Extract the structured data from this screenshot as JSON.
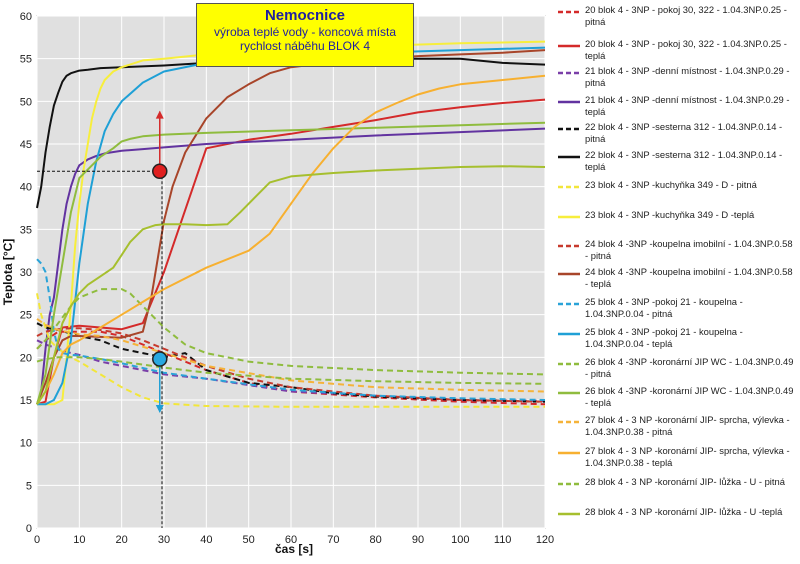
{
  "title_box": {
    "title": "Nemocnice",
    "line1": "výroba teplé vody - koncová místa",
    "line2": "rychlost náběhu BLOK  4"
  },
  "chart_data": {
    "type": "line",
    "xlabel": "čas [s]",
    "ylabel": "Teplota [°C]",
    "xlim": [
      0,
      120
    ],
    "ylim": [
      0,
      60
    ],
    "xticks": [
      0,
      10,
      20,
      30,
      40,
      50,
      60,
      70,
      80,
      90,
      100,
      110,
      120
    ],
    "yticks": [
      0,
      5,
      10,
      15,
      20,
      25,
      30,
      35,
      40,
      45,
      50,
      55,
      60
    ],
    "grid": true,
    "legend_position": "right",
    "annotations": {
      "reference_x": 30,
      "red_marker": {
        "x": 29,
        "y": 41.8
      },
      "blue_marker": {
        "x": 29,
        "y": 19.8
      }
    },
    "series": [
      {
        "name": "20 blok 4 - 3NP - pokoj 30, 322 - 1.04.3NP.0.25 - pitná",
        "color": "#d42a2a",
        "dashed": true,
        "x": [
          0,
          2,
          5,
          8,
          10,
          15,
          20,
          25,
          30,
          40,
          50,
          60,
          80,
          100,
          120
        ],
        "y": [
          21,
          22,
          23,
          23,
          23,
          23,
          22.5,
          21.5,
          20.5,
          18.5,
          17,
          16,
          15.3,
          14.8,
          14.5
        ]
      },
      {
        "name": "20 blok 4 - 3NP - pokoj 30, 322 - 1.04.3NP.0.25 - teplá",
        "color": "#d42a2a",
        "dashed": false,
        "x": [
          0,
          2,
          4,
          6,
          8,
          10,
          15,
          20,
          25,
          30,
          40,
          50,
          60,
          70,
          80,
          90,
          100,
          110,
          120
        ],
        "y": [
          14.5,
          14.8,
          20,
          23.5,
          23.6,
          23.7,
          23.5,
          23.3,
          24,
          30,
          44.5,
          45.5,
          46.2,
          47,
          47.8,
          48.7,
          49.3,
          49.8,
          50.2
        ]
      },
      {
        "name": "21 blok 4 -  3NP -denní místnost - 1.04.3NP.0.29 - pitná",
        "color": "#7a3fa8",
        "dashed": true,
        "x": [
          0,
          2,
          5,
          8,
          10,
          15,
          20,
          30,
          40,
          60,
          80,
          100,
          120
        ],
        "y": [
          22,
          21.5,
          21,
          20.5,
          20.3,
          19.5,
          19,
          18,
          17.5,
          16,
          15.5,
          15,
          14.9
        ]
      },
      {
        "name": "21 blok 4 - 3NP -denní místnost - 1.04.3NP.0.29 - teplá",
        "color": "#6233a0",
        "dashed": false,
        "x": [
          0,
          1,
          2,
          3,
          4,
          5,
          6,
          7,
          8,
          9,
          10,
          12,
          14,
          16,
          20,
          25,
          30,
          40,
          60,
          80,
          100,
          120
        ],
        "y": [
          14.5,
          16,
          21,
          25,
          27,
          31,
          35,
          38,
          40,
          41.5,
          42.5,
          43.2,
          43.6,
          43.9,
          44.2,
          44.4,
          44.6,
          45,
          45.5,
          46,
          46.4,
          46.8
        ]
      },
      {
        "name": "22 blok 4 - 3NP -sesterna 312 - 1.04.3NP.0.14  - pitná",
        "color": "#111111",
        "dashed": true,
        "x": [
          0,
          2,
          5,
          10,
          15,
          20,
          25,
          30,
          35,
          40,
          50,
          60,
          70,
          80,
          100,
          120
        ],
        "y": [
          24,
          23.5,
          23.2,
          22.5,
          22,
          21,
          20.5,
          20,
          20.5,
          18.5,
          17,
          16.5,
          15.8,
          15.4,
          15,
          14.8
        ]
      },
      {
        "name": "22 blok 4 - 3NP -sesterna 312 - 1.04.3NP.0.14  - teplá",
        "color": "#111111",
        "dashed": false,
        "x": [
          0,
          1,
          2,
          3,
          4,
          5,
          6,
          7,
          8,
          10,
          12,
          15,
          20,
          30,
          40,
          50,
          60,
          70,
          80,
          90,
          100,
          110,
          120
        ],
        "y": [
          37.5,
          40,
          44,
          47,
          49.5,
          51,
          52.3,
          53,
          53.3,
          53.6,
          53.7,
          53.9,
          54,
          54.2,
          54.5,
          54.8,
          55,
          55,
          55,
          55,
          55,
          54.5,
          54.3
        ]
      },
      {
        "name": "23 blok 4 - 3NP -kuchyňka 349 - D - pitná",
        "color": "#f2e63a",
        "dashed": true,
        "x": [
          0,
          1,
          3,
          5,
          8,
          10,
          15,
          20,
          25,
          30,
          40,
          60,
          80,
          100,
          120
        ],
        "y": [
          27.5,
          25,
          22,
          21,
          20,
          19.5,
          18,
          16.5,
          15.3,
          14.6,
          14.3,
          14.2,
          14.2,
          14.2,
          14.2
        ]
      },
      {
        "name": "23 blok 4 - 3NP -kuchyňka 349 - D -teplá",
        "color": "#f7ee3c",
        "dashed": false,
        "x": [
          0,
          2,
          4,
          6,
          7,
          8,
          9,
          10,
          11,
          12,
          13,
          14,
          15,
          16,
          18,
          20,
          25,
          30,
          40,
          60,
          80,
          100,
          120
        ],
        "y": [
          14.5,
          14.5,
          14.5,
          15,
          20,
          26,
          33,
          38,
          42,
          45,
          48,
          50,
          51.5,
          52.5,
          53.5,
          54,
          54.8,
          55,
          55.5,
          56,
          56.5,
          56.8,
          57
        ]
      },
      {
        "name": "24 blok 4 -3NP -koupelna imobilní - 1.04.3NP.0.58 - pitná",
        "color": "#c73a2d",
        "dashed": true,
        "x": [
          0,
          2,
          5,
          8,
          10,
          15,
          20,
          25,
          30,
          40,
          50,
          60,
          80,
          100,
          120
        ],
        "y": [
          22.5,
          23,
          23.3,
          23.4,
          23.4,
          23.2,
          22.8,
          22,
          21,
          19,
          17.5,
          16.5,
          15.5,
          15,
          14.8
        ]
      },
      {
        "name": "24 blok 4 -3NP -koupelna imobilní - 1.04.3NP.0.58 - teplá",
        "color": "#a8452a",
        "dashed": false,
        "x": [
          0,
          2,
          4,
          6,
          8,
          10,
          15,
          20,
          25,
          27,
          30,
          32,
          35,
          40,
          45,
          50,
          55,
          60,
          70,
          80,
          90,
          100,
          110,
          120
        ],
        "y": [
          14.5,
          17,
          20,
          22,
          22.5,
          22.5,
          22.4,
          22.3,
          23,
          27,
          36,
          40,
          44,
          48,
          50.5,
          52,
          53.3,
          54,
          54.6,
          55,
          55.3,
          55.5,
          55.7,
          56
        ]
      },
      {
        "name": "25 blok 4 - 3NP -pokoj 21 - koupelna - 1.04.3NP.0.04 - pitná",
        "color": "#2aa3d8",
        "dashed": true,
        "x": [
          0,
          1,
          2,
          3,
          4,
          5,
          6,
          8,
          10,
          15,
          20,
          30,
          40,
          60,
          80,
          100,
          120
        ],
        "y": [
          31.5,
          31,
          30,
          27,
          23,
          21,
          20.5,
          20.3,
          20.2,
          19.8,
          19.3,
          18.2,
          17.5,
          16.2,
          15.5,
          15.2,
          15
        ]
      },
      {
        "name": "25 blok 4 - 3NP -pokoj 21 - koupelna - 1.04.3NP.0.04 - teplá",
        "color": "#1fa0d6",
        "dashed": false,
        "x": [
          0,
          2,
          4,
          6,
          8,
          10,
          12,
          14,
          16,
          18,
          20,
          25,
          30,
          40,
          60,
          80,
          100,
          120
        ],
        "y": [
          14.5,
          14.5,
          15,
          17,
          22,
          31,
          38,
          43,
          46.5,
          48.5,
          50,
          52.2,
          53.5,
          54.5,
          55.2,
          55.7,
          56,
          56.3
        ]
      },
      {
        "name": "26 blok 4 -3NP -koronární JIP WC - 1.04.3NP.0.49 - pitná",
        "color": "#8fbc3e",
        "dashed": true,
        "x": [
          0,
          2,
          5,
          8,
          10,
          15,
          20,
          22,
          25,
          30,
          35,
          40,
          50,
          60,
          80,
          100,
          120
        ],
        "y": [
          21,
          22,
          24,
          26,
          27,
          28,
          28,
          27.5,
          26,
          23.5,
          21.5,
          20.5,
          19.5,
          19,
          18.5,
          18.2,
          18
        ]
      },
      {
        "name": "26 blok 4 -3NP -koronární JIP WC - 1.04.3NP.0.49 - teplá",
        "color": "#8fbc3e",
        "dashed": false,
        "x": [
          0,
          2,
          4,
          6,
          8,
          10,
          15,
          18,
          20,
          22,
          25,
          30,
          40,
          60,
          80,
          100,
          120
        ],
        "y": [
          14.5,
          18,
          25,
          31,
          37,
          41,
          43.5,
          44.5,
          45.3,
          45.6,
          45.9,
          46.1,
          46.3,
          46.6,
          46.9,
          47.2,
          47.5
        ]
      },
      {
        "name": "27 blok 4 - 3 NP -koronární JIP- sprcha, výlevka - 1.04.3NP.0.38  - pitná",
        "color": "#f5b33a",
        "dashed": true,
        "x": [
          0,
          2,
          5,
          8,
          10,
          15,
          20,
          30,
          40,
          60,
          80,
          100,
          120
        ],
        "y": [
          24.5,
          23.8,
          23.2,
          22.9,
          22.7,
          22.5,
          22,
          20.5,
          19,
          17.3,
          16.5,
          16.2,
          16
        ]
      },
      {
        "name": "27 blok 4 - 3 NP -koronární JIP- sprcha, výlevka - 1.04.3NP.0.38  - teplá",
        "color": "#f7b030",
        "dashed": false,
        "x": [
          0,
          2,
          4,
          6,
          8,
          10,
          15,
          20,
          25,
          30,
          40,
          50,
          55,
          60,
          65,
          70,
          75,
          80,
          85,
          90,
          95,
          100,
          110,
          120
        ],
        "y": [
          14.5,
          16,
          18,
          20.5,
          21.5,
          22,
          23.5,
          25,
          26.5,
          28,
          30.5,
          32.5,
          34.5,
          38,
          41.5,
          44.5,
          47,
          48.7,
          49.8,
          50.8,
          51.5,
          52,
          52.5,
          53
        ]
      },
      {
        "name": "28 blok 4 - 3 NP -koronární JIP- lůžka - U - pitná",
        "color": "#8fbc3e",
        "dashed": true,
        "x": [
          0,
          2,
          5,
          8,
          10,
          15,
          20,
          30,
          40,
          60,
          80,
          100,
          120
        ],
        "y": [
          19.5,
          19.8,
          20,
          20,
          20,
          19.8,
          19.5,
          18.8,
          18.2,
          17.5,
          17.2,
          17,
          16.9
        ]
      },
      {
        "name": "28 blok 4 - 3 NP -koronární JIP- lůžka - U -teplá",
        "color": "#a6bf2e",
        "dashed": false,
        "x": [
          0,
          2,
          4,
          6,
          8,
          10,
          12,
          15,
          18,
          20,
          22,
          25,
          28,
          30,
          35,
          40,
          45,
          48,
          52,
          55,
          60,
          70,
          80,
          90,
          100,
          110,
          120
        ],
        "y": [
          14.5,
          16,
          20,
          24,
          26,
          27.5,
          28.5,
          29.5,
          30.5,
          32,
          33.5,
          35,
          35.5,
          35.6,
          35.6,
          35.5,
          35.6,
          37,
          39,
          40.5,
          41.2,
          41.6,
          41.9,
          42.1,
          42.3,
          42.4,
          42.3
        ]
      }
    ]
  }
}
